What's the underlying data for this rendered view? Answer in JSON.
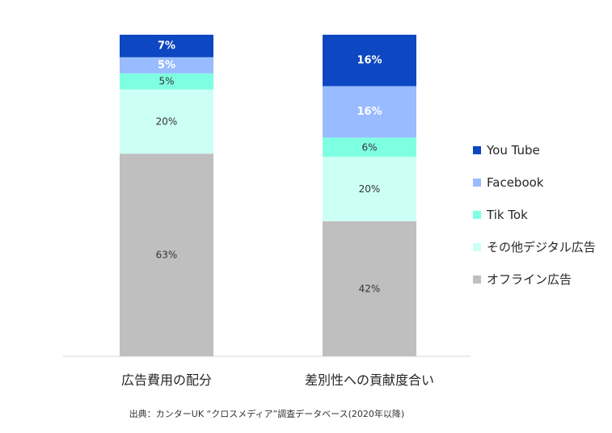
{
  "chart_data": {
    "type": "bar",
    "stacked": true,
    "percent_stacked": true,
    "categories": [
      "広告費用の配分",
      "差別性への貢献度合い"
    ],
    "series": [
      {
        "name": "オフライン広告",
        "color": "#bfbfbf",
        "values": [
          63,
          42
        ],
        "labels": [
          "63%",
          "42%"
        ],
        "label_bold": false,
        "label_color": "#333333"
      },
      {
        "name": "その他デジタル広告",
        "color": "#ccfff5",
        "values": [
          20,
          20
        ],
        "labels": [
          "20%",
          "20%"
        ],
        "label_bold": false,
        "label_color": "#333333"
      },
      {
        "name": "Tik Tok",
        "color": "#7fffe1",
        "values": [
          5,
          6
        ],
        "labels": [
          "5%",
          "6%"
        ],
        "label_bold": false,
        "label_color": "#333333"
      },
      {
        "name": "Facebook",
        "color": "#99bbff",
        "values": [
          5,
          16
        ],
        "labels": [
          "5%",
          "16%"
        ],
        "label_bold": true,
        "label_color": "#ffffff"
      },
      {
        "name": "You Tube",
        "color": "#0d47c1",
        "values": [
          7,
          16
        ],
        "labels": [
          "7%",
          "16%"
        ],
        "label_bold": true,
        "label_color": "#ffffff"
      }
    ],
    "legend_order": [
      "You Tube",
      "Facebook",
      "Tik Tok",
      "その他デジタル広告",
      "オフライン広告"
    ],
    "legend_position": "right",
    "ylim": [
      0,
      100
    ],
    "grid": false,
    "xlabel": "",
    "ylabel": "",
    "source_note": "出典：カンターUK “クロスメディア”調査データベース(2020年以降)"
  }
}
